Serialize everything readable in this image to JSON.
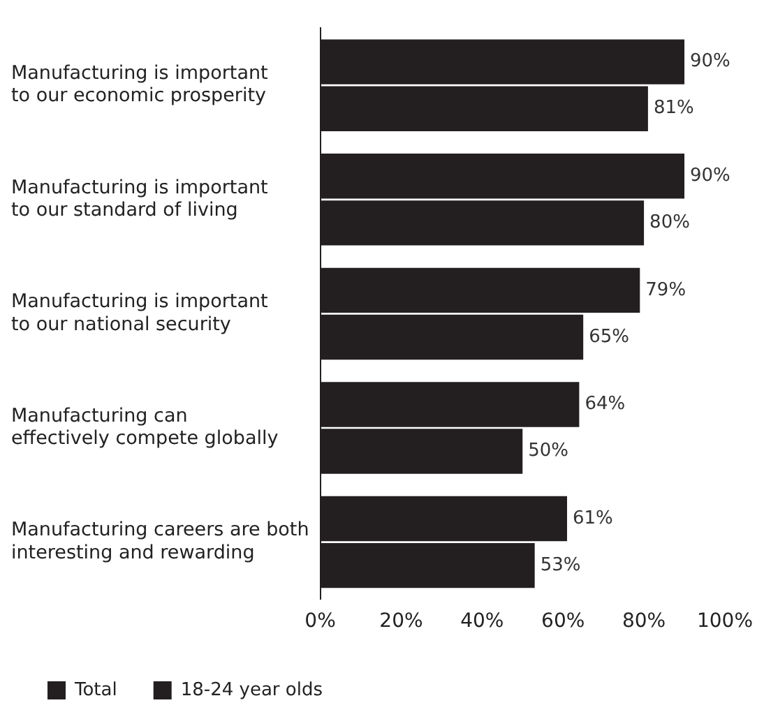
{
  "chart_data": {
    "type": "bar",
    "orientation": "horizontal",
    "categories": [
      "Manufacturing is important\nto our economic prosperity",
      "Manufacturing is important\nto our standard of living",
      "Manufacturing is important\nto our national security",
      "Manufacturing can\neffectively compete globally",
      "Manufacturing careers are both\ninteresting and rewarding"
    ],
    "series": [
      {
        "name": "Total",
        "color": "#231f20",
        "values": [
          90,
          90,
          79,
          64,
          61
        ],
        "value_labels": [
          "90%",
          "90%",
          "79%",
          "64%",
          "61%"
        ]
      },
      {
        "name": "18-24 year olds",
        "color": "#231f20",
        "values": [
          81,
          80,
          65,
          50,
          53
        ],
        "value_labels": [
          "81%",
          "80%",
          "65%",
          "50%",
          "53%"
        ]
      }
    ],
    "xlim": [
      0,
      100
    ],
    "xticks": [
      {
        "value": 0,
        "label": "0%"
      },
      {
        "value": 20,
        "label": "20%"
      },
      {
        "value": 40,
        "label": "40%"
      },
      {
        "value": 60,
        "label": "60%"
      },
      {
        "value": 80,
        "label": "80%"
      },
      {
        "value": 100,
        "label": "100%"
      }
    ],
    "grid": false,
    "legend": "bottom left"
  }
}
